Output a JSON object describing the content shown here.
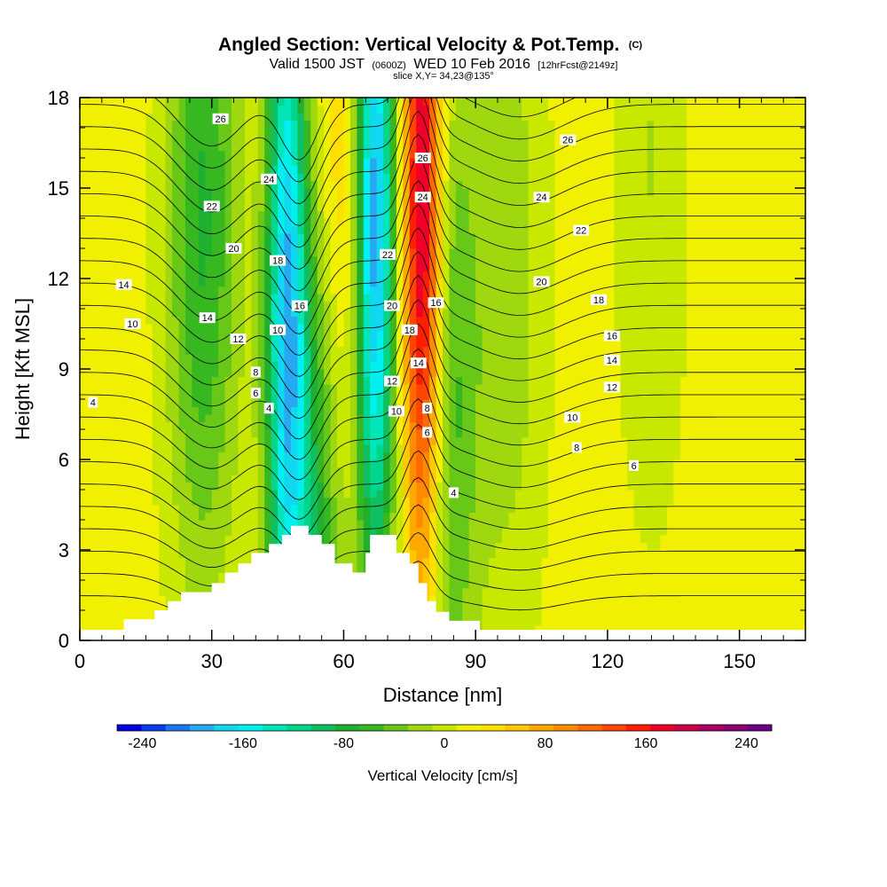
{
  "chart_data": {
    "type": "heatmap",
    "title": "Angled Section: Vertical Velocity & Pot.Temp.",
    "title_unit": "(C)",
    "subtitle_prefix": "Valid 1500 JST",
    "subtitle_zulu": "(0600Z)",
    "subtitle_date": "WED 10 Feb 2016",
    "subtitle_fcst": "[12hrFcst@2149z]",
    "slice_label": "slice X,Y= 34,23@135°",
    "xlabel": "Distance [nm]",
    "ylabel": "Height [Kft MSL]",
    "xlim": [
      0,
      165
    ],
    "ylim": [
      0,
      18
    ],
    "x_ticks": [
      0,
      30,
      60,
      90,
      120,
      150
    ],
    "y_ticks": [
      0,
      3,
      6,
      9,
      12,
      15,
      18
    ],
    "colorbar": {
      "title": "Vertical Velocity [cm/s]",
      "min": -260,
      "max": 260,
      "tick_values": [
        -240,
        -160,
        -80,
        0,
        80,
        160,
        240
      ],
      "tick_labels": [
        "-240",
        "-160",
        "-80",
        "0",
        "80",
        "160",
        "240"
      ],
      "colors": [
        "#0000e0",
        "#0a3cf0",
        "#1c78f0",
        "#28a8f0",
        "#10d8f0",
        "#00f0f0",
        "#00e6b8",
        "#00d58c",
        "#10c060",
        "#20b030",
        "#38b820",
        "#68c818",
        "#a0d810",
        "#c8e800",
        "#f0f000",
        "#ffe000",
        "#ffc800",
        "#ffa800",
        "#ff8c00",
        "#ff6a00",
        "#ff4600",
        "#ff1e00",
        "#ee0028",
        "#cc0048",
        "#aa0060",
        "#8c0070",
        "#6a0088"
      ]
    },
    "terrain_kft": [
      [
        0,
        0.35
      ],
      [
        10,
        0.35
      ],
      [
        10,
        0.7
      ],
      [
        17,
        0.7
      ],
      [
        17,
        1
      ],
      [
        20,
        1
      ],
      [
        20,
        1.3
      ],
      [
        23,
        1.3
      ],
      [
        23,
        1.6
      ],
      [
        30,
        1.6
      ],
      [
        30,
        1.9
      ],
      [
        33,
        1.9
      ],
      [
        33,
        2.25
      ],
      [
        36,
        2.25
      ],
      [
        36,
        2.55
      ],
      [
        39,
        2.55
      ],
      [
        39,
        2.9
      ],
      [
        43,
        2.9
      ],
      [
        43,
        3.2
      ],
      [
        46,
        3.2
      ],
      [
        46,
        3.5
      ],
      [
        48,
        3.5
      ],
      [
        48,
        3.8
      ],
      [
        52,
        3.8
      ],
      [
        52,
        3.5
      ],
      [
        55,
        3.5
      ],
      [
        55,
        3.2
      ],
      [
        58,
        3.2
      ],
      [
        58,
        2.55
      ],
      [
        62,
        2.55
      ],
      [
        62,
        2.25
      ],
      [
        65,
        2.25
      ],
      [
        65,
        2.9
      ],
      [
        66,
        2.9
      ],
      [
        66,
        3.5
      ],
      [
        72,
        3.5
      ],
      [
        72,
        2.9
      ],
      [
        75,
        2.9
      ],
      [
        75,
        2.55
      ],
      [
        77,
        2.55
      ],
      [
        77,
        1.9
      ],
      [
        79,
        1.9
      ],
      [
        79,
        1.3
      ],
      [
        81,
        1.3
      ],
      [
        81,
        0.95
      ],
      [
        84,
        0.95
      ],
      [
        84,
        0.65
      ],
      [
        91,
        0.65
      ],
      [
        91,
        0.35
      ],
      [
        165,
        0.35
      ]
    ],
    "w_field_peaks": [
      {
        "x": 28,
        "z": 14,
        "value": -90
      },
      {
        "x": 47,
        "z": 12,
        "value": -170
      },
      {
        "x": 53,
        "z": 4,
        "value": -110
      },
      {
        "x": 61,
        "z": 13,
        "value": 60
      },
      {
        "x": 67,
        "z": 14,
        "value": -240
      },
      {
        "x": 78,
        "z": 13,
        "value": 220
      },
      {
        "x": 82,
        "z": 8,
        "value": -90
      },
      {
        "x": 98,
        "z": 12,
        "value": -40
      },
      {
        "x": 130,
        "z": 16,
        "value": -30
      }
    ],
    "theta_levels_c": [
      4,
      6,
      8,
      10,
      12,
      14,
      16,
      18,
      20,
      22,
      24,
      26
    ],
    "theta_contour_labels": [
      {
        "x": 3,
        "z": 7.9,
        "text": "4"
      },
      {
        "x": 12,
        "z": 10.5,
        "text": "10"
      },
      {
        "x": 10,
        "z": 11.8,
        "text": "14"
      },
      {
        "x": 29,
        "z": 10.7,
        "text": "14"
      },
      {
        "x": 36,
        "z": 10.0,
        "text": "12"
      },
      {
        "x": 40,
        "z": 8.9,
        "text": "8"
      },
      {
        "x": 40,
        "z": 8.2,
        "text": "6"
      },
      {
        "x": 45,
        "z": 10.3,
        "text": "10"
      },
      {
        "x": 43,
        "z": 7.7,
        "text": "4"
      },
      {
        "x": 35,
        "z": 13.0,
        "text": "20"
      },
      {
        "x": 30,
        "z": 14.4,
        "text": "22"
      },
      {
        "x": 43,
        "z": 15.3,
        "text": "24"
      },
      {
        "x": 32,
        "z": 17.3,
        "text": "26"
      },
      {
        "x": 45,
        "z": 12.6,
        "text": "18"
      },
      {
        "x": 50,
        "z": 11.1,
        "text": "16"
      },
      {
        "x": 70,
        "z": 12.8,
        "text": "22"
      },
      {
        "x": 71,
        "z": 11.1,
        "text": "20"
      },
      {
        "x": 75,
        "z": 10.3,
        "text": "18"
      },
      {
        "x": 77,
        "z": 9.2,
        "text": "14"
      },
      {
        "x": 71,
        "z": 8.6,
        "text": "12"
      },
      {
        "x": 72,
        "z": 7.6,
        "text": "10"
      },
      {
        "x": 79,
        "z": 7.7,
        "text": "8"
      },
      {
        "x": 79,
        "z": 6.9,
        "text": "6"
      },
      {
        "x": 85,
        "z": 4.9,
        "text": "4"
      },
      {
        "x": 78,
        "z": 16.0,
        "text": "26"
      },
      {
        "x": 78,
        "z": 14.7,
        "text": "24"
      },
      {
        "x": 81,
        "z": 11.2,
        "text": "16"
      },
      {
        "x": 111,
        "z": 16.6,
        "text": "26"
      },
      {
        "x": 105,
        "z": 14.7,
        "text": "24"
      },
      {
        "x": 114,
        "z": 13.6,
        "text": "22"
      },
      {
        "x": 105,
        "z": 11.9,
        "text": "20"
      },
      {
        "x": 118,
        "z": 11.3,
        "text": "18"
      },
      {
        "x": 121,
        "z": 10.1,
        "text": "16"
      },
      {
        "x": 121,
        "z": 9.3,
        "text": "14"
      },
      {
        "x": 121,
        "z": 8.4,
        "text": "12"
      },
      {
        "x": 112,
        "z": 7.4,
        "text": "10"
      },
      {
        "x": 113,
        "z": 6.4,
        "text": "8"
      },
      {
        "x": 126,
        "z": 5.8,
        "text": "6"
      }
    ]
  }
}
